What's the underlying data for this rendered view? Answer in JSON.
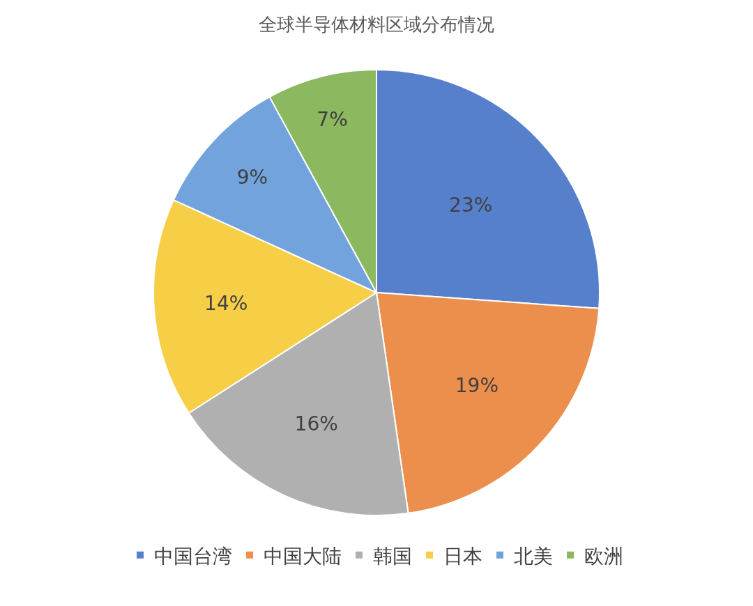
{
  "chart_data": {
    "type": "pie",
    "title": "全球半导体材料区域分布情况",
    "categories": [
      "中国台湾",
      "中国大陆",
      "韩国",
      "日本",
      "北美",
      "欧洲"
    ],
    "values": [
      23,
      19,
      16,
      14,
      9,
      7
    ],
    "value_labels": [
      "23%",
      "19%",
      "16%",
      "14%",
      "9%",
      "7%"
    ],
    "colors": [
      "#5680cc",
      "#ec8e4c",
      "#b0b0b0",
      "#f6cf47",
      "#72a3dd",
      "#8cb85f"
    ],
    "legend": "bottom"
  }
}
